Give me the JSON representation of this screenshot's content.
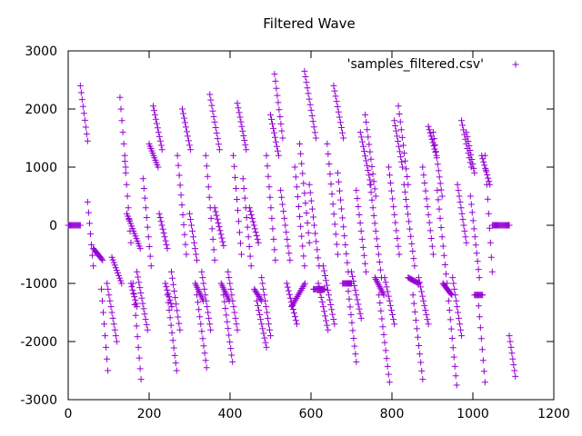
{
  "chart_data": {
    "type": "scatter",
    "title": "Filtered Wave",
    "xlabel": "",
    "ylabel": "",
    "xlim": [
      0,
      1200
    ],
    "ylim": [
      -3000,
      3000
    ],
    "x_ticks": [
      0,
      200,
      400,
      600,
      800,
      1000,
      1200
    ],
    "y_ticks": [
      -3000,
      -2000,
      -1000,
      0,
      1000,
      2000,
      3000
    ],
    "grid": false,
    "legend_position": "top-right",
    "marker": "plus",
    "series": [
      {
        "name": "'samples_filtered.csv'",
        "color": "#9400d3",
        "segments": [
          {
            "x_start": 0,
            "x_end": 30,
            "y_start": 0,
            "y_end": 0
          },
          {
            "x_start": 30,
            "x_end": 48,
            "y_start": 2400,
            "y_end": 1450
          },
          {
            "x_start": 48,
            "x_end": 62,
            "y_start": 400,
            "y_end": -700
          },
          {
            "x_start": 62,
            "x_end": 85,
            "y_start": -400,
            "y_end": -600
          },
          {
            "x_start": 82,
            "x_end": 98,
            "y_start": -1100,
            "y_end": -2500
          },
          {
            "x_start": 96,
            "x_end": 120,
            "y_start": -1000,
            "y_end": -2000
          },
          {
            "x_start": 108,
            "x_end": 132,
            "y_start": -550,
            "y_end": -1000
          },
          {
            "x_start": 128,
            "x_end": 142,
            "y_start": 2200,
            "y_end": 1000
          },
          {
            "x_start": 140,
            "x_end": 155,
            "y_start": 1100,
            "y_end": -300
          },
          {
            "x_start": 145,
            "x_end": 178,
            "y_start": 200,
            "y_end": -400
          },
          {
            "x_start": 155,
            "x_end": 170,
            "y_start": -1000,
            "y_end": -1400
          },
          {
            "x_start": 160,
            "x_end": 180,
            "y_start": -1000,
            "y_end": -2650
          },
          {
            "x_start": 170,
            "x_end": 196,
            "y_start": -800,
            "y_end": -1800
          },
          {
            "x_start": 185,
            "x_end": 205,
            "y_start": 800,
            "y_end": -700
          },
          {
            "x_start": 200,
            "x_end": 222,
            "y_start": 1400,
            "y_end": 1000
          },
          {
            "x_start": 210,
            "x_end": 232,
            "y_start": 2050,
            "y_end": 1300
          },
          {
            "x_start": 225,
            "x_end": 245,
            "y_start": 200,
            "y_end": -400
          },
          {
            "x_start": 240,
            "x_end": 256,
            "y_start": -1000,
            "y_end": -1400
          },
          {
            "x_start": 245,
            "x_end": 268,
            "y_start": -1200,
            "y_end": -2500
          },
          {
            "x_start": 255,
            "x_end": 276,
            "y_start": -800,
            "y_end": -1800
          },
          {
            "x_start": 270,
            "x_end": 292,
            "y_start": 1200,
            "y_end": -500
          },
          {
            "x_start": 282,
            "x_end": 302,
            "y_start": 2000,
            "y_end": 1300
          },
          {
            "x_start": 300,
            "x_end": 318,
            "y_start": 200,
            "y_end": -600
          },
          {
            "x_start": 314,
            "x_end": 334,
            "y_start": -1000,
            "y_end": -1300
          },
          {
            "x_start": 318,
            "x_end": 342,
            "y_start": -1200,
            "y_end": -2450
          },
          {
            "x_start": 330,
            "x_end": 352,
            "y_start": -800,
            "y_end": -1800
          },
          {
            "x_start": 340,
            "x_end": 362,
            "y_start": 1200,
            "y_end": -600
          },
          {
            "x_start": 350,
            "x_end": 374,
            "y_start": 2250,
            "y_end": 1300
          },
          {
            "x_start": 362,
            "x_end": 384,
            "y_start": 300,
            "y_end": -350
          },
          {
            "x_start": 378,
            "x_end": 398,
            "y_start": -1000,
            "y_end": -1300
          },
          {
            "x_start": 384,
            "x_end": 406,
            "y_start": -1200,
            "y_end": -2350
          },
          {
            "x_start": 395,
            "x_end": 418,
            "y_start": -800,
            "y_end": -1800
          },
          {
            "x_start": 408,
            "x_end": 428,
            "y_start": 1200,
            "y_end": -500
          },
          {
            "x_start": 418,
            "x_end": 440,
            "y_start": 2100,
            "y_end": 1300
          },
          {
            "x_start": 432,
            "x_end": 452,
            "y_start": 800,
            "y_end": -700
          },
          {
            "x_start": 448,
            "x_end": 470,
            "y_start": 300,
            "y_end": -300
          },
          {
            "x_start": 460,
            "x_end": 478,
            "y_start": -1100,
            "y_end": -1300
          },
          {
            "x_start": 466,
            "x_end": 490,
            "y_start": -1300,
            "y_end": -2100
          },
          {
            "x_start": 478,
            "x_end": 500,
            "y_start": -900,
            "y_end": -1900
          },
          {
            "x_start": 490,
            "x_end": 512,
            "y_start": 1200,
            "y_end": -600
          },
          {
            "x_start": 500,
            "x_end": 520,
            "y_start": 1900,
            "y_end": 1200
          },
          {
            "x_start": 510,
            "x_end": 530,
            "y_start": 2600,
            "y_end": 1500
          },
          {
            "x_start": 525,
            "x_end": 548,
            "y_start": 600,
            "y_end": -600
          },
          {
            "x_start": 540,
            "x_end": 565,
            "y_start": -1000,
            "y_end": -1700
          },
          {
            "x_start": 552,
            "x_end": 585,
            "y_start": -1400,
            "y_end": -1000
          },
          {
            "x_start": 560,
            "x_end": 584,
            "y_start": 1000,
            "y_end": -700
          },
          {
            "x_start": 572,
            "x_end": 596,
            "y_start": 1400,
            "y_end": -300
          },
          {
            "x_start": 584,
            "x_end": 612,
            "y_start": 2650,
            "y_end": 1500
          },
          {
            "x_start": 596,
            "x_end": 620,
            "y_start": 700,
            "y_end": -700
          },
          {
            "x_start": 606,
            "x_end": 634,
            "y_start": -1100,
            "y_end": -1100
          },
          {
            "x_start": 618,
            "x_end": 642,
            "y_start": -1000,
            "y_end": -1800
          },
          {
            "x_start": 630,
            "x_end": 658,
            "y_start": -700,
            "y_end": -1700
          },
          {
            "x_start": 640,
            "x_end": 666,
            "y_start": 1400,
            "y_end": -500
          },
          {
            "x_start": 656,
            "x_end": 680,
            "y_start": 2400,
            "y_end": 1500
          },
          {
            "x_start": 666,
            "x_end": 692,
            "y_start": 900,
            "y_end": -800
          },
          {
            "x_start": 678,
            "x_end": 700,
            "y_start": -1000,
            "y_end": -1000
          },
          {
            "x_start": 690,
            "x_end": 712,
            "y_start": -1000,
            "y_end": -2350
          },
          {
            "x_start": 700,
            "x_end": 724,
            "y_start": -800,
            "y_end": -1600
          },
          {
            "x_start": 712,
            "x_end": 736,
            "y_start": 600,
            "y_end": -800
          },
          {
            "x_start": 722,
            "x_end": 748,
            "y_start": 1600,
            "y_end": 700
          },
          {
            "x_start": 734,
            "x_end": 760,
            "y_start": 1900,
            "y_end": 500
          },
          {
            "x_start": 746,
            "x_end": 774,
            "y_start": 700,
            "y_end": -900
          },
          {
            "x_start": 758,
            "x_end": 780,
            "y_start": -900,
            "y_end": -1200
          },
          {
            "x_start": 768,
            "x_end": 794,
            "y_start": -1200,
            "y_end": -2700
          },
          {
            "x_start": 782,
            "x_end": 806,
            "y_start": -900,
            "y_end": -1700
          },
          {
            "x_start": 792,
            "x_end": 818,
            "y_start": 1000,
            "y_end": -500
          },
          {
            "x_start": 806,
            "x_end": 826,
            "y_start": 1800,
            "y_end": 1000
          },
          {
            "x_start": 816,
            "x_end": 840,
            "y_start": 2050,
            "y_end": 700
          },
          {
            "x_start": 830,
            "x_end": 856,
            "y_start": 700,
            "y_end": -700
          },
          {
            "x_start": 840,
            "x_end": 866,
            "y_start": -900,
            "y_end": -1000
          },
          {
            "x_start": 852,
            "x_end": 876,
            "y_start": -1200,
            "y_end": -2650
          },
          {
            "x_start": 866,
            "x_end": 890,
            "y_start": -900,
            "y_end": -1700
          },
          {
            "x_start": 876,
            "x_end": 902,
            "y_start": 1000,
            "y_end": -500
          },
          {
            "x_start": 890,
            "x_end": 910,
            "y_start": 1700,
            "y_end": 1200
          },
          {
            "x_start": 902,
            "x_end": 924,
            "y_start": 1600,
            "y_end": 500
          },
          {
            "x_start": 912,
            "x_end": 936,
            "y_start": 600,
            "y_end": -1000
          },
          {
            "x_start": 926,
            "x_end": 948,
            "y_start": -1000,
            "y_end": -1200
          },
          {
            "x_start": 940,
            "x_end": 960,
            "y_start": -1300,
            "y_end": -2750
          },
          {
            "x_start": 950,
            "x_end": 972,
            "y_start": -900,
            "y_end": -1900
          },
          {
            "x_start": 962,
            "x_end": 984,
            "y_start": 700,
            "y_end": -300
          },
          {
            "x_start": 972,
            "x_end": 996,
            "y_start": 1800,
            "y_end": 1000
          },
          {
            "x_start": 984,
            "x_end": 1004,
            "y_start": 1600,
            "y_end": 900
          },
          {
            "x_start": 994,
            "x_end": 1016,
            "y_start": 500,
            "y_end": -900
          },
          {
            "x_start": 1004,
            "x_end": 1024,
            "y_start": -1200,
            "y_end": -1200
          },
          {
            "x_start": 1012,
            "x_end": 1030,
            "y_start": -1200,
            "y_end": -2700
          },
          {
            "x_start": 1022,
            "x_end": 1042,
            "y_start": 1200,
            "y_end": 700
          },
          {
            "x_start": 1030,
            "x_end": 1048,
            "y_start": 1200,
            "y_end": -800
          },
          {
            "x_start": 1048,
            "x_end": 1090,
            "y_start": 0,
            "y_end": 0
          },
          {
            "x_start": 1090,
            "x_end": 1105,
            "y_start": -1900,
            "y_end": -2600
          }
        ]
      }
    ]
  }
}
